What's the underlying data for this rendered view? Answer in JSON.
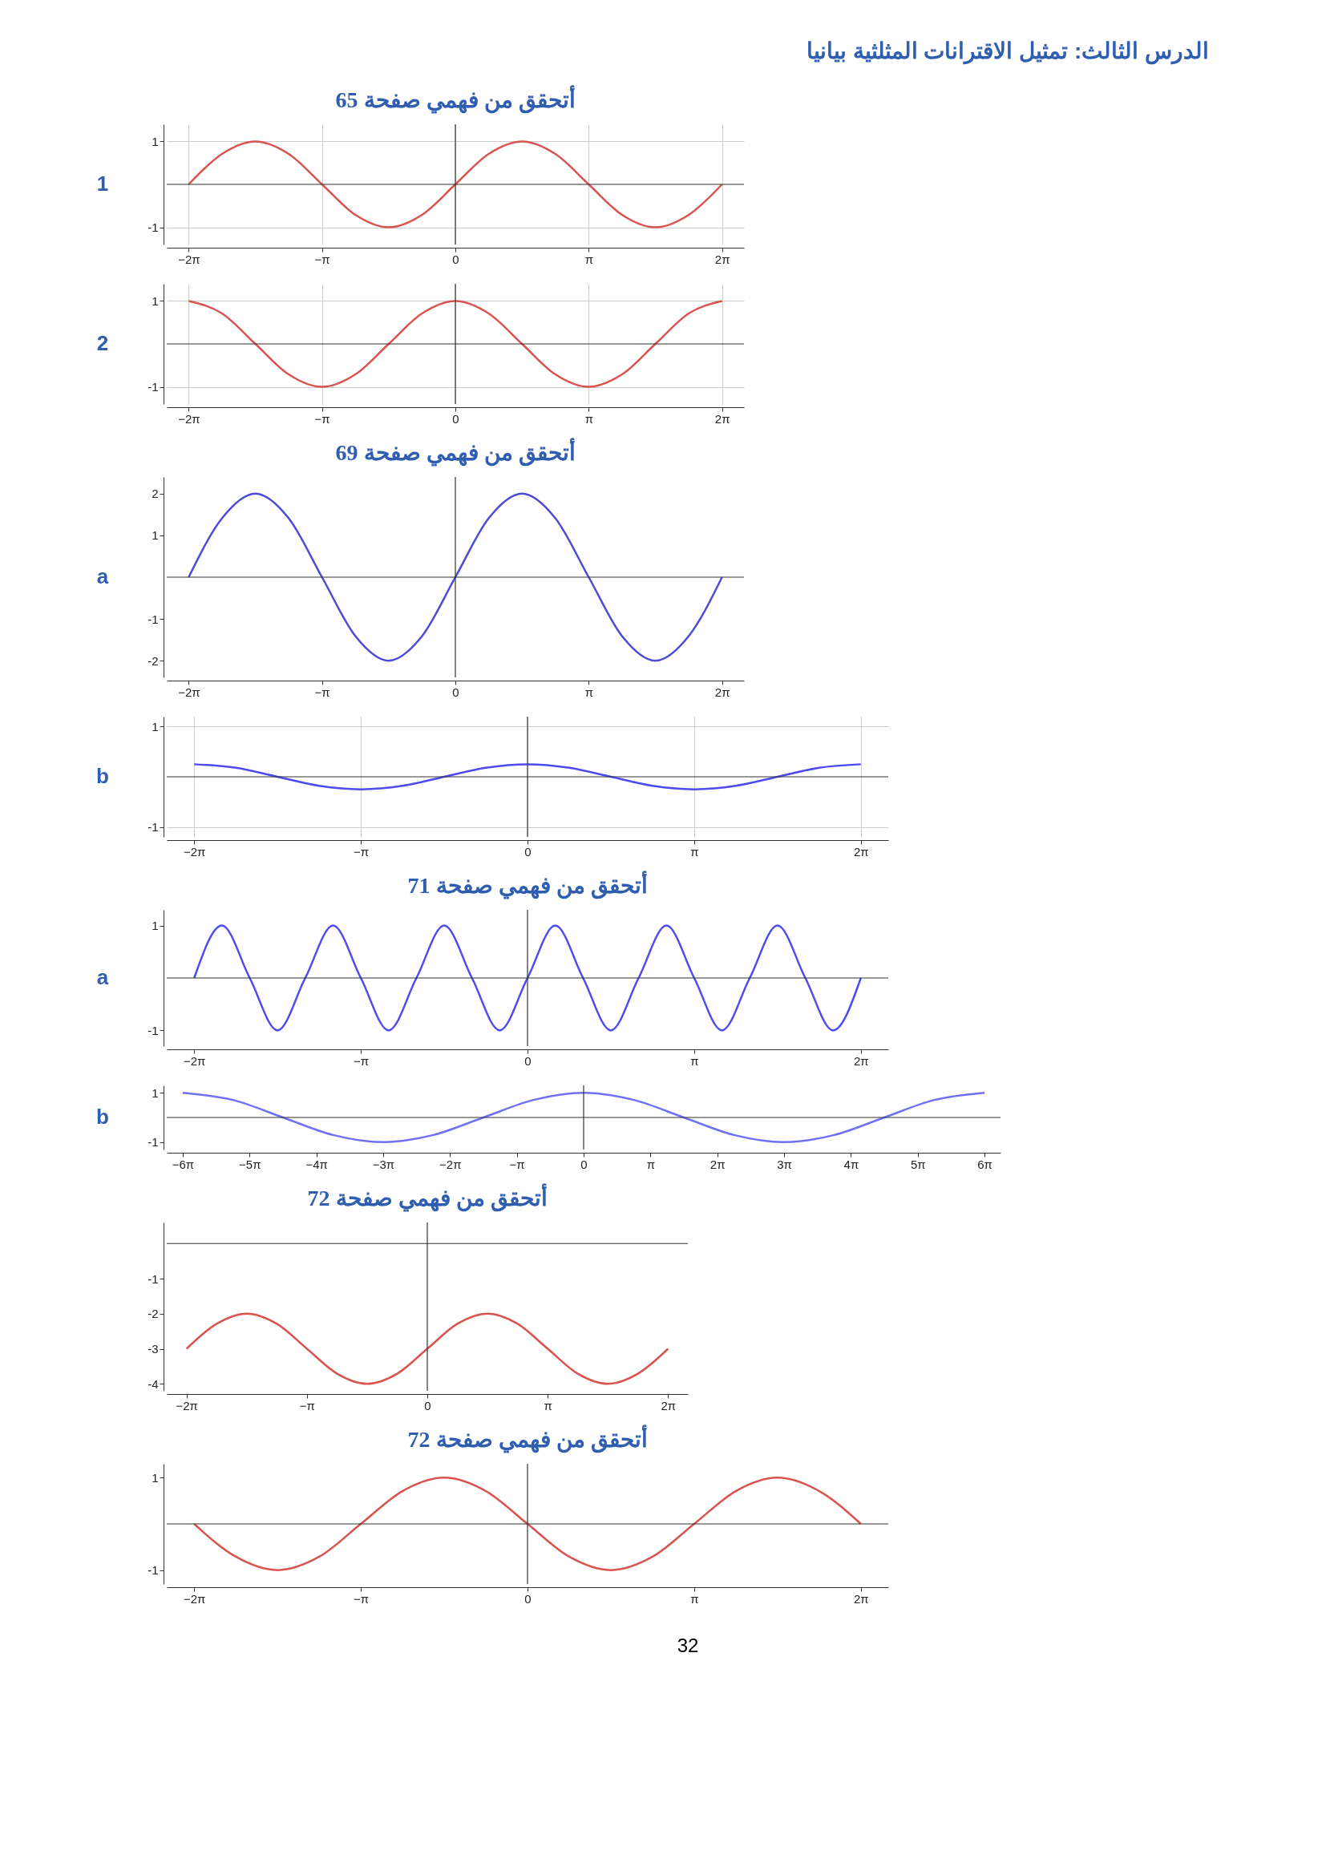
{
  "chart_data": [
    {
      "type": "line",
      "title": "أتحقق من فهمي صفحة 65",
      "ylabel": "1",
      "annotations": [
        "الدرس الثالث: تمثيل الاقترانات المثلثية بيانيا"
      ],
      "color": "#d9534f",
      "grid": true,
      "xlim": [
        -6.8,
        6.8
      ],
      "ylim": [
        -1.4,
        1.4
      ],
      "xticks": [
        {
          "value": -6.283,
          "label": "−2π"
        },
        {
          "value": -3.142,
          "label": "−π"
        },
        0,
        {
          "value": 3.142,
          "label": "π"
        },
        {
          "value": 6.283,
          "label": "2π"
        }
      ],
      "yticks": [
        -1,
        1
      ],
      "x": [
        -6.283,
        -5.498,
        -4.712,
        -3.927,
        -3.142,
        -2.356,
        -1.571,
        -0.785,
        0,
        0.785,
        1.571,
        2.356,
        3.142,
        3.927,
        4.712,
        5.498,
        6.283
      ],
      "values": [
        0,
        0.71,
        1,
        0.71,
        0,
        -0.71,
        -1,
        -0.71,
        0,
        0.71,
        1,
        0.71,
        0,
        -0.71,
        -1,
        -0.71,
        0
      ]
    },
    {
      "type": "line",
      "ylabel": "2",
      "color": "#d9534f",
      "grid": true,
      "xlim": [
        -6.8,
        6.8
      ],
      "ylim": [
        -1.4,
        1.4
      ],
      "xticks": [
        {
          "value": -6.283,
          "label": "−2π"
        },
        {
          "value": -3.142,
          "label": "−π"
        },
        0,
        {
          "value": 3.142,
          "label": "π"
        },
        {
          "value": 6.283,
          "label": "2π"
        }
      ],
      "yticks": [
        -1,
        1
      ],
      "x": [
        -6.283,
        -5.498,
        -4.712,
        -3.927,
        -3.142,
        -2.356,
        -1.571,
        -0.785,
        0,
        0.785,
        1.571,
        2.356,
        3.142,
        3.927,
        4.712,
        5.498,
        6.283
      ],
      "values": [
        1,
        0.71,
        0,
        -0.71,
        -1,
        -0.71,
        0,
        0.71,
        1,
        0.71,
        0,
        -0.71,
        -1,
        -0.71,
        0,
        0.71,
        1
      ]
    },
    {
      "type": "line",
      "title": "أتحقق من فهمي صفحة 69",
      "ylabel": "a",
      "color": "#4b4bd8",
      "xlim": [
        -6.8,
        6.8
      ],
      "ylim": [
        -2.4,
        2.4
      ],
      "xticks": [
        {
          "value": -6.283,
          "label": "−2π"
        },
        {
          "value": -3.142,
          "label": "−π"
        },
        0,
        {
          "value": 3.142,
          "label": "π"
        },
        {
          "value": 6.283,
          "label": "2π"
        }
      ],
      "yticks": [
        -2,
        -1,
        1,
        2
      ],
      "x": [
        -6.283,
        -5.498,
        -4.712,
        -3.927,
        -3.142,
        -2.356,
        -1.571,
        -0.785,
        0,
        0.785,
        1.571,
        2.356,
        3.142,
        3.927,
        4.712,
        5.498,
        6.283
      ],
      "values": [
        0,
        1.41,
        2,
        1.41,
        0,
        -1.41,
        -2,
        -1.41,
        0,
        1.41,
        2,
        1.41,
        0,
        -1.41,
        -2,
        -1.41,
        0
      ]
    },
    {
      "type": "line",
      "ylabel": "b",
      "color": "#4b4bf0",
      "grid": true,
      "xlim": [
        -6.8,
        6.8
      ],
      "ylim": [
        -1.2,
        1.2
      ],
      "xticks": [
        {
          "value": -6.283,
          "label": "−2π"
        },
        {
          "value": -3.142,
          "label": "−π"
        },
        0,
        {
          "value": 3.142,
          "label": "π"
        },
        {
          "value": 6.283,
          "label": "2π"
        }
      ],
      "yticks": [
        -1,
        1
      ],
      "x": [
        -6.283,
        -5.498,
        -4.712,
        -3.927,
        -3.142,
        -2.356,
        -1.571,
        -0.785,
        0,
        0.785,
        1.571,
        2.356,
        3.142,
        3.927,
        4.712,
        5.498,
        6.283
      ],
      "values": [
        0.25,
        0.18,
        0,
        -0.18,
        -0.25,
        -0.18,
        0,
        0.18,
        0.25,
        0.18,
        0,
        -0.18,
        -0.25,
        -0.18,
        0,
        0.18,
        0.25
      ]
    },
    {
      "type": "line",
      "title": "أتحقق من فهمي صفحة 71",
      "ylabel": "a",
      "color": "#4b4bf0",
      "xlim": [
        -6.8,
        6.8
      ],
      "ylim": [
        -1.3,
        1.3
      ],
      "xticks": [
        {
          "value": -6.283,
          "label": "−2π"
        },
        {
          "value": -3.142,
          "label": "−π"
        },
        0,
        {
          "value": 3.142,
          "label": "π"
        },
        {
          "value": 6.283,
          "label": "2π"
        }
      ],
      "yticks": [
        -1,
        1
      ],
      "x": [
        -6.283,
        -5.76,
        -5.236,
        -4.712,
        -4.189,
        -3.665,
        -3.142,
        -2.618,
        -2.094,
        -1.571,
        -1.047,
        -0.524,
        0,
        0.524,
        1.047,
        1.571,
        2.094,
        2.618,
        3.142,
        3.665,
        4.189,
        4.712,
        5.236,
        5.76,
        6.283
      ],
      "values": [
        0,
        1,
        0,
        -1,
        0,
        1,
        0,
        -1,
        0,
        1,
        0,
        -1,
        0,
        1,
        0,
        -1,
        0,
        1,
        0,
        -1,
        0,
        1,
        0,
        -1,
        0
      ]
    },
    {
      "type": "line",
      "ylabel": "b",
      "color": "#7070f5",
      "xlim": [
        -19.6,
        19.6
      ],
      "ylim": [
        -1.3,
        1.3
      ],
      "xticks": [
        {
          "value": -18.85,
          "label": "−6π"
        },
        {
          "value": -15.708,
          "label": "−5π"
        },
        {
          "value": -12.566,
          "label": "−4π"
        },
        {
          "value": -9.425,
          "label": "−3π"
        },
        {
          "value": -6.283,
          "label": "−2π"
        },
        {
          "value": -3.142,
          "label": "−π"
        },
        0,
        {
          "value": 3.142,
          "label": "π"
        },
        {
          "value": 6.283,
          "label": "2π"
        },
        {
          "value": 9.425,
          "label": "3π"
        },
        {
          "value": 12.566,
          "label": "4π"
        },
        {
          "value": 15.708,
          "label": "5π"
        },
        {
          "value": 18.85,
          "label": "6π"
        }
      ],
      "yticks": [
        -1,
        1
      ],
      "x": [
        -18.85,
        -16.493,
        -14.137,
        -11.781,
        -9.425,
        -7.069,
        -4.712,
        -2.356,
        0,
        2.356,
        4.712,
        7.069,
        9.425,
        11.781,
        14.137,
        16.493,
        18.85
      ],
      "values": [
        1,
        0.71,
        0,
        -0.71,
        -1,
        -0.71,
        0,
        0.71,
        1,
        0.71,
        0,
        -0.71,
        -1,
        -0.71,
        0,
        0.71,
        1
      ]
    },
    {
      "type": "line",
      "title": "أتحقق من فهمي صفحة 72",
      "color": "#d9534f",
      "xlim": [
        -6.8,
        6.8
      ],
      "ylim": [
        -4.2,
        0.6
      ],
      "xticks": [
        {
          "value": -6.283,
          "label": "−2π"
        },
        {
          "value": -3.142,
          "label": "−π"
        },
        0,
        {
          "value": 3.142,
          "label": "π"
        },
        {
          "value": 6.283,
          "label": "2π"
        }
      ],
      "yticks": [
        -4,
        -3,
        -2,
        -1
      ],
      "x": [
        -6.283,
        -5.498,
        -4.712,
        -3.927,
        -3.142,
        -2.356,
        -1.571,
        -0.785,
        0,
        0.785,
        1.571,
        2.356,
        3.142,
        3.927,
        4.712,
        5.498,
        6.283
      ],
      "values": [
        -3,
        -2.29,
        -2,
        -2.29,
        -3,
        -3.71,
        -4,
        -3.71,
        -3,
        -2.29,
        -2,
        -2.29,
        -3,
        -3.71,
        -4,
        -3.71,
        -3
      ]
    },
    {
      "type": "line",
      "title": "أتحقق من فهمي صفحة 72",
      "annotations": [
        "32"
      ],
      "color": "#d9534f",
      "xlim": [
        -6.8,
        6.8
      ],
      "ylim": [
        -1.3,
        1.3
      ],
      "xticks": [
        {
          "value": -6.283,
          "label": "−2π"
        },
        {
          "value": -3.142,
          "label": "−π"
        },
        0,
        {
          "value": 3.142,
          "label": "π"
        },
        {
          "value": 6.283,
          "label": "2π"
        }
      ],
      "yticks": [
        -1,
        1
      ],
      "x": [
        -6.283,
        -5.498,
        -4.712,
        -3.927,
        -3.142,
        -2.356,
        -1.571,
        -0.785,
        0,
        0.785,
        1.571,
        2.356,
        3.142,
        3.927,
        4.712,
        5.498,
        6.283
      ],
      "values": [
        0,
        -0.71,
        -1,
        -0.71,
        0,
        0.71,
        1,
        0.71,
        0,
        -0.71,
        -1,
        -0.71,
        0,
        0.71,
        1,
        0.71,
        0
      ]
    }
  ]
}
